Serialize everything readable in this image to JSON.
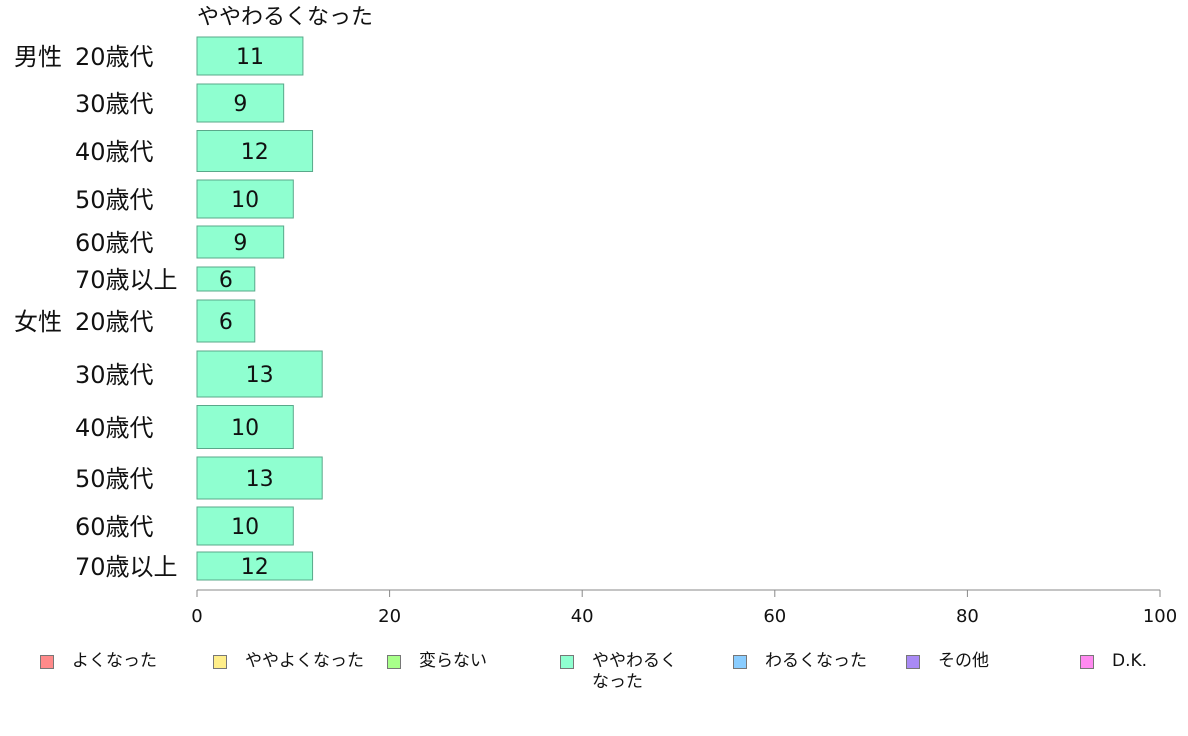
{
  "chart_data": {
    "type": "bar",
    "orientation": "horizontal",
    "series_title": "ややわるくなった",
    "groups": [
      {
        "name": "男性",
        "categories": [
          "20歳代",
          "30歳代",
          "40歳代",
          "50歳代",
          "60歳代",
          "70歳以上"
        ]
      },
      {
        "name": "女性",
        "categories": [
          "20歳代",
          "30歳代",
          "40歳代",
          "50歳代",
          "60歳代",
          "70歳以上"
        ]
      }
    ],
    "values": [
      11,
      9,
      12,
      10,
      9,
      6,
      6,
      13,
      10,
      13,
      10,
      12
    ],
    "xlim": [
      0,
      100
    ],
    "xticks": [
      0,
      20,
      40,
      60,
      80,
      100
    ],
    "bar_color": "#8fffd0",
    "bar_stroke": "#5aa88a",
    "legend_position": "bottom",
    "legend": [
      {
        "label": "よくなった",
        "color": "#ff8a8a"
      },
      {
        "label": "ややよくなった",
        "color": "#ffee8a"
      },
      {
        "label": "変らない",
        "color": "#a8ff8a"
      },
      {
        "label": "ややわるく\nなった",
        "color": "#8fffd0"
      },
      {
        "label": "わるくなった",
        "color": "#8acdff"
      },
      {
        "label": "その他",
        "color": "#a98af5"
      },
      {
        "label": "D.K.",
        "color": "#ff8af0"
      }
    ]
  }
}
